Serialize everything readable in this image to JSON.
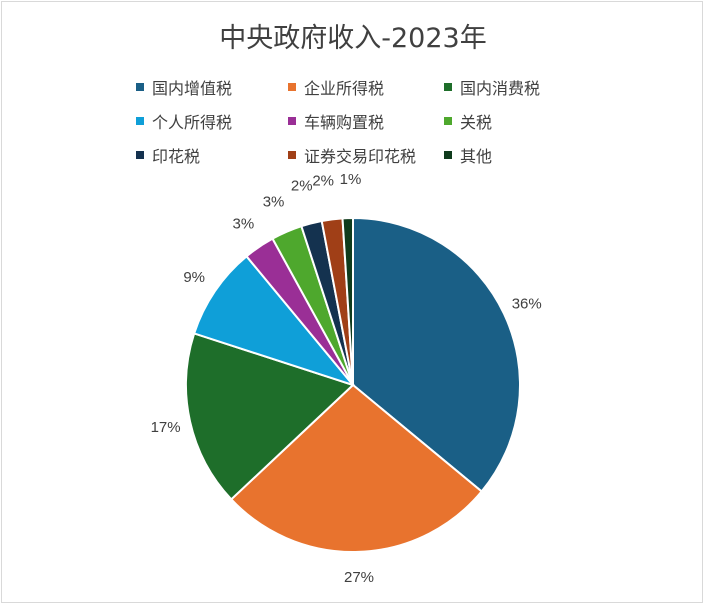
{
  "chart_data": {
    "type": "pie",
    "title": "中央政府收入-2023年",
    "categories": [
      "国内增值税",
      "企业所得税",
      "国内消费税",
      "个人所得税",
      "车辆购置税",
      "关税",
      "印花税",
      "证券交易印花税",
      "其他"
    ],
    "values": [
      36,
      27,
      17,
      9,
      3,
      3,
      2,
      2,
      1
    ],
    "data_labels": [
      "36%",
      "27%",
      "17%",
      "9%",
      "3%",
      "3%",
      "2%",
      "2%",
      "1%"
    ],
    "colors": [
      "#1a5f86",
      "#e8732e",
      "#1e6e2a",
      "#0f9fd8",
      "#9a2f96",
      "#4ea82d",
      "#14324f",
      "#a03f17",
      "#0f3b1c"
    ],
    "legend_position": "top",
    "units": "percent"
  }
}
